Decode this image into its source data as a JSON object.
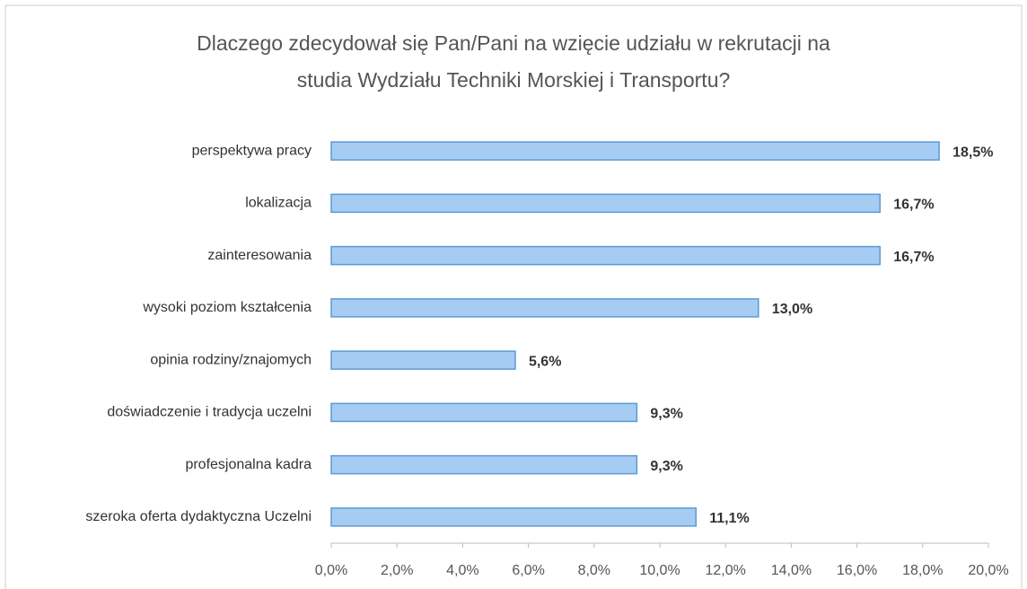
{
  "chart_data": {
    "type": "bar",
    "orientation": "horizontal",
    "title": [
      "Dlaczego zdecydował się Pan/Pani na wzięcie udziału w rekrutacji na",
      "studia Wydziału Techniki Morskiej i Transportu?"
    ],
    "categories": [
      "perspektywa pracy",
      "lokalizacja",
      "zainteresowania",
      "wysoki poziom kształcenia",
      "opinia rodziny/znajomych",
      "doświadczenie i tradycja uczelni",
      "profesjonalna kadra",
      "szeroka oferta dydaktyczna Uczelni"
    ],
    "values": [
      18.5,
      16.7,
      16.7,
      13.0,
      5.6,
      9.3,
      9.3,
      11.1
    ],
    "value_labels": [
      "18,5%",
      "16,7%",
      "16,7%",
      "13,0%",
      "5,6%",
      "9,3%",
      "9,3%",
      "11,1%"
    ],
    "color": "#a6ccf3",
    "xlim": [
      0,
      20
    ],
    "xticks": [
      {
        "value": 0,
        "label": "0,0%"
      },
      {
        "value": 2,
        "label": "2,0%"
      },
      {
        "value": 4,
        "label": "4,0%"
      },
      {
        "value": 6,
        "label": "6,0%"
      },
      {
        "value": 8,
        "label": "8,0%"
      },
      {
        "value": 10,
        "label": "10,0%"
      },
      {
        "value": 12,
        "label": "12,0%"
      },
      {
        "value": 14,
        "label": "14,0%"
      },
      {
        "value": 16,
        "label": "16,0%"
      },
      {
        "value": 18,
        "label": "18,0%"
      },
      {
        "value": 20,
        "label": "20,0%"
      }
    ],
    "grid": false
  }
}
